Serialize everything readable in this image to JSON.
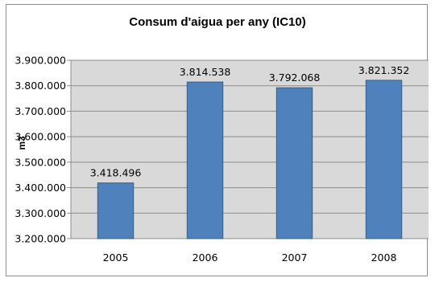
{
  "chart_data": {
    "type": "bar",
    "title": "Consum d'aigua per any (IC10)",
    "xlabel": "",
    "ylabel": "m3",
    "categories": [
      "2005",
      "2006",
      "2007",
      "2008"
    ],
    "values": [
      3418496,
      3814538,
      3792068,
      3821352
    ],
    "value_labels": [
      "3.418.496",
      "3.814.538",
      "3.792.068",
      "3.821.352"
    ],
    "ylim": [
      3200000,
      3900000
    ],
    "yticks": [
      3200000,
      3300000,
      3400000,
      3500000,
      3600000,
      3700000,
      3800000,
      3900000
    ],
    "ytick_labels": [
      "3.200.000",
      "3.300.000",
      "3.400.000",
      "3.500.000",
      "3.600.000",
      "3.700.000",
      "3.800.000",
      "3.900.000"
    ],
    "grid": true,
    "legend": "none",
    "colors": {
      "bar": "#4f81bd",
      "bar_edge": "#385d8a",
      "plot_background": "#d9d9d9",
      "gridline": "#8c8c8c"
    }
  }
}
